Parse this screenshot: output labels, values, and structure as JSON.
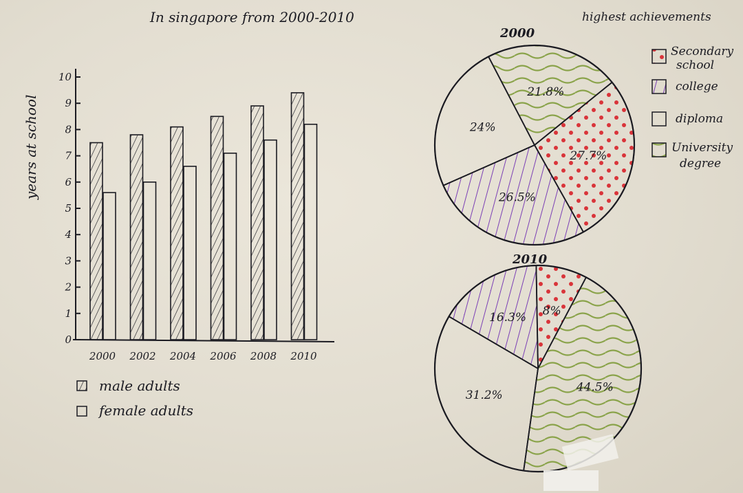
{
  "title": "In singapore from 2000-2010",
  "colors": {
    "ink": "#1b1b22",
    "red_dots": "#d9343a",
    "purple": "#7b3fb5",
    "green": "#8aa34a",
    "paper": "#e2ddd0"
  },
  "chart_data": [
    {
      "type": "bar",
      "title": "",
      "xlabel": "",
      "ylabel": "years at school",
      "categories": [
        "2000",
        "2002",
        "2004",
        "2006",
        "2008",
        "2010"
      ],
      "ylim": [
        0,
        10
      ],
      "yticks": [
        "0",
        "1",
        "2",
        "3",
        "4",
        "5",
        "6",
        "7",
        "8",
        "9",
        "10"
      ],
      "series": [
        {
          "name": "male adults",
          "values": [
            7.5,
            7.8,
            8.1,
            8.5,
            8.9,
            9.4
          ],
          "pattern": "hatched"
        },
        {
          "name": "female adults",
          "values": [
            5.6,
            6.0,
            6.6,
            7.1,
            7.6,
            8.2
          ],
          "pattern": "plain"
        }
      ],
      "legend_placement": "bottom-left"
    },
    {
      "type": "pie",
      "title": "2000",
      "legend_title": "highest achievements",
      "slices": [
        {
          "name": "Secondary school",
          "value": 27.7,
          "label": "27.7%",
          "pattern": "red-dots"
        },
        {
          "name": "college",
          "value": 26.5,
          "label": "26.5%",
          "pattern": "purple-hatch"
        },
        {
          "name": "diploma",
          "value": 24,
          "label": "24%",
          "pattern": "plain"
        },
        {
          "name": "University degree",
          "value": 21.8,
          "label": "21.8%",
          "pattern": "green-waves"
        }
      ]
    },
    {
      "type": "pie",
      "title": "2010",
      "slices": [
        {
          "name": "Secondary school",
          "value": 8,
          "label": "8%",
          "pattern": "red-dots"
        },
        {
          "name": "University degree",
          "value": 44.5,
          "label": "44.5%",
          "pattern": "green-waves"
        },
        {
          "name": "diploma",
          "value": 31.2,
          "label": "31.2%",
          "pattern": "plain"
        },
        {
          "name": "college",
          "value": 16.3,
          "label": "16.3%",
          "pattern": "purple-hatch"
        }
      ]
    }
  ],
  "bar_legend": [
    {
      "label": "male adults",
      "pattern": "hatched"
    },
    {
      "label": "female adults",
      "pattern": "plain"
    }
  ],
  "pie_legend": {
    "title": "highest achievements",
    "items": [
      {
        "line1": "Secondary",
        "line2": "school",
        "pattern": "red-dots"
      },
      {
        "line1": "college",
        "line2": "",
        "pattern": "purple-hatch"
      },
      {
        "line1": "diploma",
        "line2": "",
        "pattern": "plain"
      },
      {
        "line1": "University",
        "line2": "degree",
        "pattern": "green-waves"
      }
    ]
  }
}
